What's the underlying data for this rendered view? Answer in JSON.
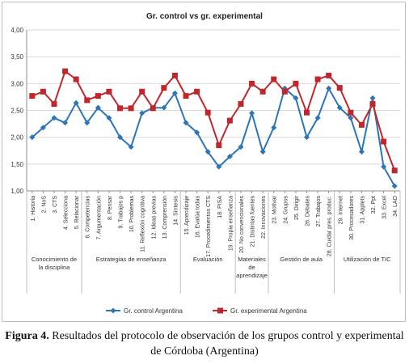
{
  "chart_data": {
    "type": "line",
    "title": "Gr. control vs gr. experimental",
    "xlabel": "",
    "ylabel": "",
    "ylim": [
      1.0,
      4.0
    ],
    "yticks": [
      "1,00",
      "1,50",
      "2,00",
      "2,50",
      "3,00",
      "3,50",
      "4,00"
    ],
    "grid": true,
    "legend_position": "bottom",
    "categories": [
      "1. Historia",
      "2. NoS",
      "3. CTS",
      "4. Selecciona",
      "5. Relacionar",
      "6. Competencias",
      "7. Argumentación",
      "8. Pensar",
      "9. Trabajos p",
      "10. Problemas",
      "11. Reflexión cognitiva",
      "12. Ideas previas",
      "13. Comprensión",
      "14. Síntesis",
      "15. Aprendizaje",
      "16. Evalúa todas",
      "17. Procedimientos CTS",
      "18. PISA",
      "19. Propia enseñanza",
      "20. No convencionales",
      "21. Distintas fuentes",
      "22. Innovaciones",
      "23. Motivar",
      "24. Grupos",
      "25. Dirigir",
      "26. Debates",
      "27. Trabajos",
      "28. Cuidar pres. produc.",
      "29. Internet",
      "30. Procesadores",
      "31. Applets",
      "32. Ppt",
      "33. Excel",
      "34. LAO"
    ],
    "groups": [
      {
        "label": "Conocimiento de la disciplina",
        "start": 0,
        "end": 4
      },
      {
        "label": "Estrategias de enseñanza",
        "start": 5,
        "end": 13
      },
      {
        "label": "Evaluación",
        "start": 14,
        "end": 18
      },
      {
        "label": "Materiales de aprendizaje",
        "start": 19,
        "end": 21
      },
      {
        "label": "Gestión de aula",
        "start": 22,
        "end": 27
      },
      {
        "label": "Utilización de TIC",
        "start": 28,
        "end": 33
      }
    ],
    "series": [
      {
        "name": "Gr. control Argentina",
        "color": "#2e75b6",
        "marker": "diamond",
        "values": [
          2.0,
          2.18,
          2.36,
          2.27,
          2.64,
          2.27,
          2.55,
          2.36,
          2.0,
          1.82,
          2.45,
          2.55,
          2.55,
          2.82,
          2.27,
          2.09,
          1.73,
          1.45,
          1.64,
          1.82,
          2.45,
          1.73,
          2.18,
          2.91,
          2.73,
          2.0,
          2.36,
          2.91,
          2.55,
          2.36,
          1.73,
          2.73,
          1.45,
          1.09
        ]
      },
      {
        "name": "Gr. experimental Argentina",
        "color": "#c0272d",
        "marker": "square",
        "values": [
          2.77,
          2.85,
          2.62,
          3.23,
          3.08,
          2.69,
          2.77,
          2.85,
          2.54,
          2.54,
          2.85,
          2.54,
          2.92,
          3.15,
          2.77,
          2.85,
          2.46,
          1.85,
          2.31,
          2.62,
          3.0,
          2.85,
          3.08,
          2.85,
          3.0,
          2.46,
          3.08,
          3.15,
          2.92,
          2.46,
          2.23,
          2.62,
          1.92,
          1.38
        ]
      }
    ]
  },
  "caption": {
    "figure_label": "Figura 4.",
    "text": " Resultados del protocolo de observación de los grupos control y experimental de Córdoba (Argentina)"
  }
}
